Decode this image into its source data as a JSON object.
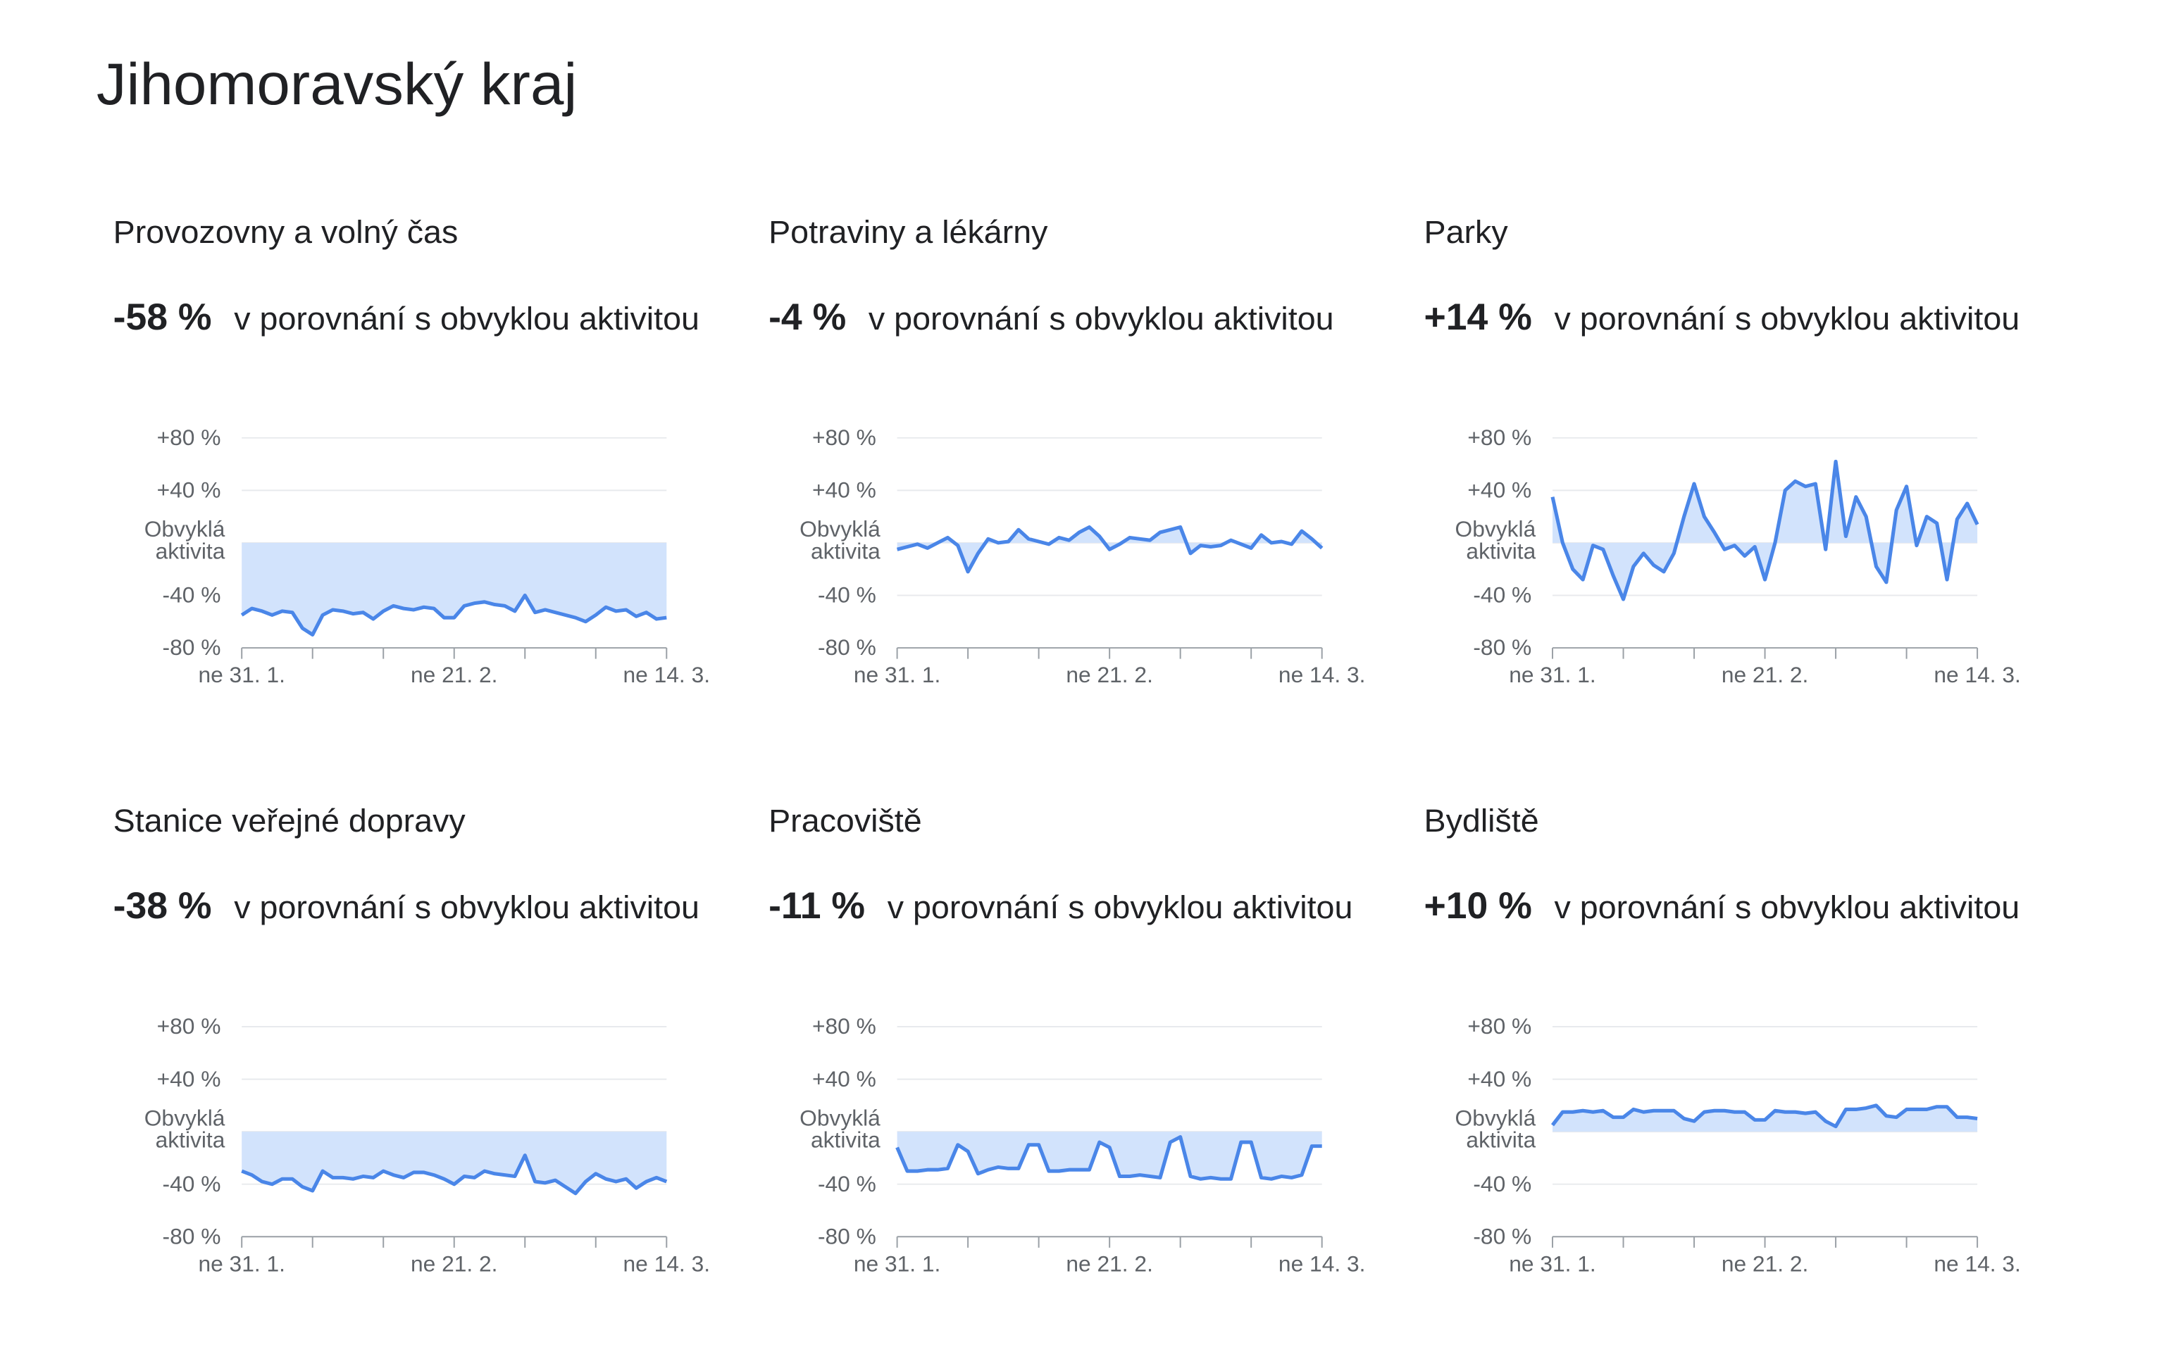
{
  "page_title": "Jihomoravský kraj",
  "chart_data": [
    {
      "type": "line",
      "title": "Provozovny a volný čas",
      "change": "-58 %",
      "comparison": "v porovnání s obvyklou aktivitou",
      "categories": [
        "ne 31. 1.",
        null,
        null,
        null,
        null,
        null,
        null,
        null,
        null,
        null,
        null,
        null,
        null,
        null,
        null,
        null,
        null,
        null,
        null,
        null,
        null,
        "ne 21. 2.",
        null,
        null,
        null,
        null,
        null,
        null,
        null,
        null,
        null,
        null,
        null,
        null,
        null,
        null,
        null,
        null,
        null,
        null,
        null,
        null,
        "ne 14. 3."
      ],
      "values": [
        -55,
        -50,
        -52,
        -55,
        -52,
        -53,
        -65,
        -70,
        -55,
        -51,
        -52,
        -54,
        -53,
        -58,
        -52,
        -48,
        -50,
        -51,
        -49,
        -50,
        -57,
        -57,
        -48,
        -46,
        -45,
        -47,
        -48,
        -52,
        -40,
        -53,
        -51,
        -53,
        -55,
        -57,
        -60,
        -55,
        -49,
        -52,
        -51,
        -56,
        -53,
        -58,
        -57
      ],
      "color": "#4a86e8",
      "fill": "#d2e3fc",
      "ylim": [
        -80,
        80
      ],
      "yticks": [
        {
          "value": 80,
          "label": "+80 %"
        },
        {
          "value": 40,
          "label": "+40 %"
        },
        {
          "value": 0,
          "label": "Obvyklá aktivita"
        },
        {
          "value": -40,
          "label": "-40 %"
        },
        {
          "value": -80,
          "label": "-80 %"
        }
      ],
      "grid": true
    },
    {
      "type": "line",
      "title": "Potraviny a lékárny",
      "change": "-4 %",
      "comparison": "v porovnání s obvyklou aktivitou",
      "categories": [
        "ne 31. 1.",
        null,
        null,
        null,
        null,
        null,
        null,
        null,
        null,
        null,
        null,
        null,
        null,
        null,
        null,
        null,
        null,
        null,
        null,
        null,
        null,
        "ne 21. 2.",
        null,
        null,
        null,
        null,
        null,
        null,
        null,
        null,
        null,
        null,
        null,
        null,
        null,
        null,
        null,
        null,
        null,
        null,
        null,
        null,
        "ne 14. 3."
      ],
      "values": [
        -5,
        -3,
        -1,
        -4,
        0,
        4,
        -2,
        -22,
        -8,
        3,
        0,
        1,
        10,
        3,
        1,
        -1,
        4,
        2,
        8,
        12,
        5,
        -5,
        -1,
        4,
        3,
        2,
        8,
        10,
        12,
        -8,
        -2,
        -3,
        -2,
        2,
        -1,
        -4,
        6,
        0,
        1,
        -1,
        9,
        3,
        -4
      ],
      "color": "#4a86e8",
      "fill": "#d2e3fc",
      "ylim": [
        -80,
        80
      ],
      "yticks": [
        {
          "value": 80,
          "label": "+80 %"
        },
        {
          "value": 40,
          "label": "+40 %"
        },
        {
          "value": 0,
          "label": "Obvyklá aktivita"
        },
        {
          "value": -40,
          "label": "-40 %"
        },
        {
          "value": -80,
          "label": "-80 %"
        }
      ],
      "grid": true
    },
    {
      "type": "line",
      "title": "Parky",
      "change": "+14 %",
      "comparison": "v porovnání s obvyklou aktivitou",
      "categories": [
        "ne 31. 1.",
        null,
        null,
        null,
        null,
        null,
        null,
        null,
        null,
        null,
        null,
        null,
        null,
        null,
        null,
        null,
        null,
        null,
        null,
        null,
        null,
        "ne 21. 2.",
        null,
        null,
        null,
        null,
        null,
        null,
        null,
        null,
        null,
        null,
        null,
        null,
        null,
        null,
        null,
        null,
        null,
        null,
        null,
        null,
        "ne 14. 3."
      ],
      "values": [
        35,
        0,
        -20,
        -28,
        -2,
        -5,
        -25,
        -43,
        -18,
        -8,
        -17,
        -22,
        -8,
        20,
        45,
        20,
        8,
        -5,
        -2,
        -10,
        -3,
        -28,
        0,
        40,
        47,
        43,
        45,
        -5,
        62,
        5,
        35,
        20,
        -18,
        -30,
        25,
        43,
        -2,
        20,
        15,
        -28,
        18,
        30,
        14
      ],
      "color": "#4a86e8",
      "fill": "#d2e3fc",
      "ylim": [
        -80,
        80
      ],
      "yticks": [
        {
          "value": 80,
          "label": "+80 %"
        },
        {
          "value": 40,
          "label": "+40 %"
        },
        {
          "value": 0,
          "label": "Obvyklá aktivita"
        },
        {
          "value": -40,
          "label": "-40 %"
        },
        {
          "value": -80,
          "label": "-80 %"
        }
      ],
      "grid": true
    },
    {
      "type": "line",
      "title": "Stanice veřejné dopravy",
      "change": "-38 %",
      "comparison": "v porovnání s obvyklou aktivitou",
      "categories": [
        "ne 31. 1.",
        null,
        null,
        null,
        null,
        null,
        null,
        null,
        null,
        null,
        null,
        null,
        null,
        null,
        null,
        null,
        null,
        null,
        null,
        null,
        null,
        "ne 21. 2.",
        null,
        null,
        null,
        null,
        null,
        null,
        null,
        null,
        null,
        null,
        null,
        null,
        null,
        null,
        null,
        null,
        null,
        null,
        null,
        null,
        "ne 14. 3."
      ],
      "values": [
        -30,
        -33,
        -38,
        -40,
        -36,
        -36,
        -42,
        -45,
        -30,
        -35,
        -35,
        -36,
        -34,
        -35,
        -30,
        -33,
        -35,
        -31,
        -31,
        -33,
        -36,
        -40,
        -34,
        -35,
        -30,
        -32,
        -33,
        -34,
        -18,
        -38,
        -39,
        -37,
        -42,
        -47,
        -38,
        -32,
        -36,
        -38,
        -36,
        -43,
        -38,
        -35,
        -38
      ],
      "color": "#4a86e8",
      "fill": "#d2e3fc",
      "ylim": [
        -80,
        80
      ],
      "yticks": [
        {
          "value": 80,
          "label": "+80 %"
        },
        {
          "value": 40,
          "label": "+40 %"
        },
        {
          "value": 0,
          "label": "Obvyklá aktivita"
        },
        {
          "value": -40,
          "label": "-40 %"
        },
        {
          "value": -80,
          "label": "-80 %"
        }
      ],
      "grid": true
    },
    {
      "type": "line",
      "title": "Pracoviště",
      "change": "-11 %",
      "comparison": "v porovnání s obvyklou aktivitou",
      "categories": [
        "ne 31. 1.",
        null,
        null,
        null,
        null,
        null,
        null,
        null,
        null,
        null,
        null,
        null,
        null,
        null,
        null,
        null,
        null,
        null,
        null,
        null,
        null,
        "ne 21. 2.",
        null,
        null,
        null,
        null,
        null,
        null,
        null,
        null,
        null,
        null,
        null,
        null,
        null,
        null,
        null,
        null,
        null,
        null,
        null,
        null,
        "ne 14. 3."
      ],
      "values": [
        -12,
        -30,
        -30,
        -29,
        -29,
        -28,
        -10,
        -15,
        -32,
        -29,
        -27,
        -28,
        -28,
        -10,
        -10,
        -30,
        -30,
        -29,
        -29,
        -29,
        -8,
        -12,
        -34,
        -34,
        -33,
        -34,
        -35,
        -8,
        -4,
        -34,
        -36,
        -35,
        -36,
        -36,
        -8,
        -8,
        -35,
        -36,
        -34,
        -35,
        -33,
        -11,
        -11
      ],
      "color": "#4a86e8",
      "fill": "#d2e3fc",
      "ylim": [
        -80,
        80
      ],
      "yticks": [
        {
          "value": 80,
          "label": "+80 %"
        },
        {
          "value": 40,
          "label": "+40 %"
        },
        {
          "value": 0,
          "label": "Obvyklá aktivita"
        },
        {
          "value": -40,
          "label": "-40 %"
        },
        {
          "value": -80,
          "label": "-80 %"
        }
      ],
      "grid": true
    },
    {
      "type": "line",
      "title": "Bydliště",
      "change": "+10 %",
      "comparison": "v porovnání s obvyklou aktivitou",
      "categories": [
        "ne 31. 1.",
        null,
        null,
        null,
        null,
        null,
        null,
        null,
        null,
        null,
        null,
        null,
        null,
        null,
        null,
        null,
        null,
        null,
        null,
        null,
        null,
        "ne 21. 2.",
        null,
        null,
        null,
        null,
        null,
        null,
        null,
        null,
        null,
        null,
        null,
        null,
        null,
        null,
        null,
        null,
        null,
        null,
        null,
        null,
        "ne 14. 3."
      ],
      "values": [
        5,
        15,
        15,
        16,
        15,
        16,
        11,
        11,
        17,
        15,
        16,
        16,
        16,
        10,
        8,
        15,
        16,
        16,
        15,
        15,
        9,
        9,
        16,
        15,
        15,
        14,
        15,
        8,
        4,
        17,
        17,
        18,
        20,
        12,
        11,
        17,
        17,
        17,
        19,
        19,
        11,
        11,
        10
      ],
      "color": "#4a86e8",
      "fill": "#d2e3fc",
      "ylim": [
        -80,
        80
      ],
      "yticks": [
        {
          "value": 80,
          "label": "+80 %"
        },
        {
          "value": 40,
          "label": "+40 %"
        },
        {
          "value": 0,
          "label": "Obvyklá aktivita"
        },
        {
          "value": -40,
          "label": "-40 %"
        },
        {
          "value": -80,
          "label": "-80 %"
        }
      ],
      "grid": true
    }
  ]
}
